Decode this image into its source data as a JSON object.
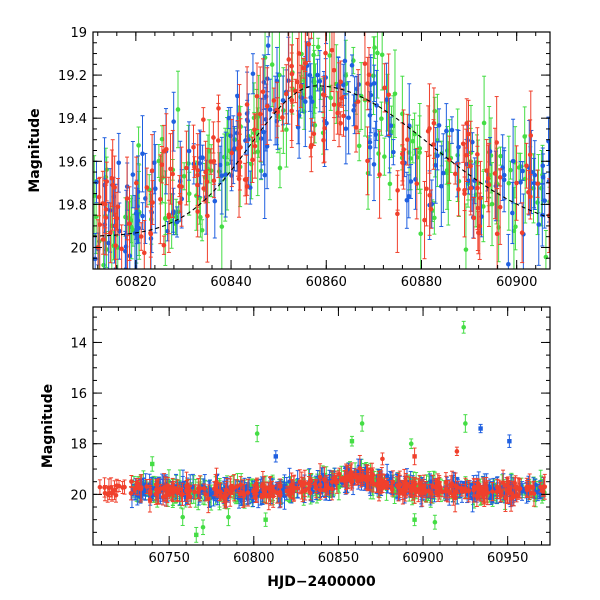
{
  "colors": {
    "green": "#44dd44",
    "blue": "#1f5fe0",
    "red": "#f0402c",
    "model": "#000000",
    "frame": "#000000"
  },
  "chart_data": [
    {
      "type": "scatter",
      "title": "",
      "xlabel": "",
      "ylabel": "Magnitude",
      "xlim": [
        60811,
        60907
      ],
      "ylim": [
        20.1,
        19.0
      ],
      "y_inverted": true,
      "xticks": [
        60820,
        60840,
        60860,
        60880,
        60900
      ],
      "yticks": [
        19,
        19.2,
        19.4,
        19.6,
        19.8,
        20
      ],
      "ytick_labels": [
        "19",
        "19.2",
        "19.4",
        "19.6",
        "19.8",
        "20"
      ],
      "grid": false,
      "legend": "none",
      "series_colors": [
        "green",
        "blue",
        "red"
      ],
      "points_per_series": 170,
      "error_bar_range": [
        0.04,
        0.22
      ],
      "model_curve": {
        "style": "dashed",
        "peak_x": 60858,
        "peak_mag": 19.25,
        "base_mag": 19.95,
        "rise_width_days": 14,
        "decline_width_days": 24
      },
      "trend": [
        {
          "x": 60811,
          "y": 19.85
        },
        {
          "x": 60820,
          "y": 19.82
        },
        {
          "x": 60830,
          "y": 19.72
        },
        {
          "x": 60840,
          "y": 19.55
        },
        {
          "x": 60848,
          "y": 19.4
        },
        {
          "x": 60852,
          "y": 19.3
        },
        {
          "x": 60858,
          "y": 19.27
        },
        {
          "x": 60864,
          "y": 19.25
        },
        {
          "x": 60868,
          "y": 19.35
        },
        {
          "x": 60875,
          "y": 19.55
        },
        {
          "x": 60885,
          "y": 19.65
        },
        {
          "x": 60895,
          "y": 19.72
        },
        {
          "x": 60907,
          "y": 19.8
        }
      ]
    },
    {
      "type": "scatter",
      "title": "",
      "xlabel": "HJD−2400000",
      "ylabel": "Magnitude",
      "xlim": [
        60705,
        60975
      ],
      "ylim": [
        22.0,
        12.6
      ],
      "y_inverted": true,
      "xticks": [
        60750,
        60800,
        60850,
        60900,
        60950
      ],
      "yticks": [
        14,
        16,
        18,
        20
      ],
      "ytick_labels": [
        "14",
        "16",
        "18",
        "20"
      ],
      "grid": false,
      "legend": "none",
      "series_colors": [
        "green",
        "blue",
        "red"
      ],
      "points_per_series": 330,
      "error_bar_range": [
        0.1,
        0.55
      ],
      "trend": [
        {
          "x": 60710,
          "y": 19.9
        },
        {
          "x": 60730,
          "y": 19.8
        },
        {
          "x": 60760,
          "y": 19.85
        },
        {
          "x": 60790,
          "y": 19.9
        },
        {
          "x": 60820,
          "y": 19.8
        },
        {
          "x": 60835,
          "y": 19.7
        },
        {
          "x": 60850,
          "y": 19.5
        },
        {
          "x": 60862,
          "y": 19.2
        },
        {
          "x": 60870,
          "y": 19.45
        },
        {
          "x": 60885,
          "y": 19.7
        },
        {
          "x": 60910,
          "y": 19.8
        },
        {
          "x": 60940,
          "y": 19.85
        },
        {
          "x": 60970,
          "y": 19.8
        }
      ],
      "outliers": [
        {
          "x": 60924,
          "y": 13.4,
          "series": "green"
        },
        {
          "x": 60864,
          "y": 17.2,
          "series": "green"
        },
        {
          "x": 60925,
          "y": 17.2,
          "series": "green"
        },
        {
          "x": 60934,
          "y": 17.4,
          "series": "blue"
        },
        {
          "x": 60951,
          "y": 17.9,
          "series": "blue"
        },
        {
          "x": 60802,
          "y": 17.6,
          "series": "green"
        },
        {
          "x": 60858,
          "y": 17.9,
          "series": "green"
        },
        {
          "x": 60893,
          "y": 18.0,
          "series": "green"
        },
        {
          "x": 60920,
          "y": 18.3,
          "series": "red"
        },
        {
          "x": 60770,
          "y": 21.3,
          "series": "green"
        },
        {
          "x": 60766,
          "y": 21.6,
          "series": "green"
        },
        {
          "x": 60758,
          "y": 20.9,
          "series": "green"
        },
        {
          "x": 60785,
          "y": 20.9,
          "series": "green"
        },
        {
          "x": 60807,
          "y": 21.0,
          "series": "green"
        },
        {
          "x": 60895,
          "y": 21.0,
          "series": "green"
        },
        {
          "x": 60907,
          "y": 21.1,
          "series": "green"
        },
        {
          "x": 60740,
          "y": 18.8,
          "series": "green"
        },
        {
          "x": 60876,
          "y": 18.6,
          "series": "red"
        },
        {
          "x": 60895,
          "y": 18.5,
          "series": "red"
        },
        {
          "x": 60813,
          "y": 18.5,
          "series": "blue"
        }
      ]
    }
  ]
}
